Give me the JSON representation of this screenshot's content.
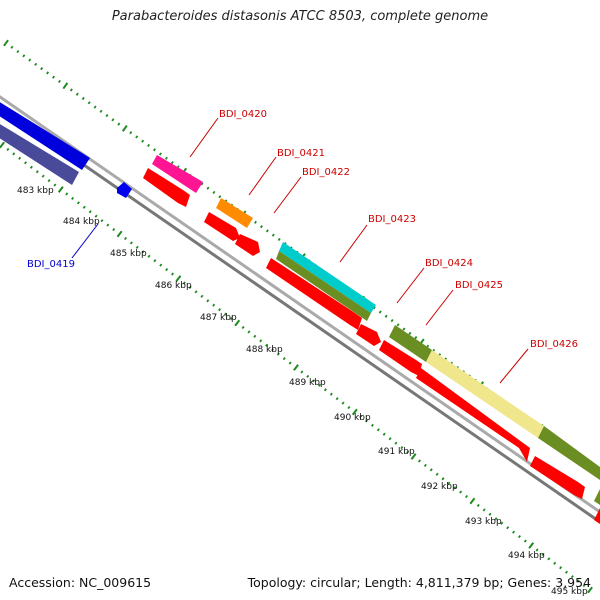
{
  "title": "Parabacteroides distasonis ATCC 8503, complete genome",
  "footer": {
    "accession": "Accession: NC_009615",
    "summary": "Topology: circular; Length: 4,811,379 bp; Genes: 3,954"
  },
  "colors": {
    "backbone": "#9a9a9a",
    "tick": "#1f8a1f",
    "label_red": "#cc0000",
    "label_blue": "#0000cc"
  },
  "scale_labels": [
    "483 kbp",
    "484 kbp",
    "485 kbp",
    "486 kbp",
    "487 kbp",
    "488 kbp",
    "489 kbp",
    "490 kbp",
    "491 kbp",
    "492 kbp",
    "493 kbp",
    "494 kbp",
    "495 kbp"
  ],
  "gene_labels": [
    {
      "text": "BDI_0419",
      "color": "blue"
    },
    {
      "text": "BDI_0420",
      "color": "red"
    },
    {
      "text": "BDI_0421",
      "color": "red"
    },
    {
      "text": "BDI_0422",
      "color": "red"
    },
    {
      "text": "BDI_0423",
      "color": "red"
    },
    {
      "text": "BDI_0424",
      "color": "red"
    },
    {
      "text": "BDI_0425",
      "color": "red"
    },
    {
      "text": "BDI_0426",
      "color": "red"
    }
  ],
  "features": [
    {
      "name": "feature-blue",
      "color": "#0000dd"
    },
    {
      "name": "feature-slate-blue",
      "color": "#4a4a9a"
    },
    {
      "name": "feature-small-blue",
      "color": "#0000ee"
    },
    {
      "name": "feature-pink",
      "color": "#ff1493"
    },
    {
      "name": "feature-orange",
      "color": "#ff8c00"
    },
    {
      "name": "feature-cyan",
      "color": "#00cccc"
    },
    {
      "name": "feature-olive",
      "color": "#6b8e23"
    },
    {
      "name": "feature-khaki",
      "color": "#f0e68c"
    },
    {
      "name": "feature-red",
      "color": "#ff0000"
    }
  ]
}
